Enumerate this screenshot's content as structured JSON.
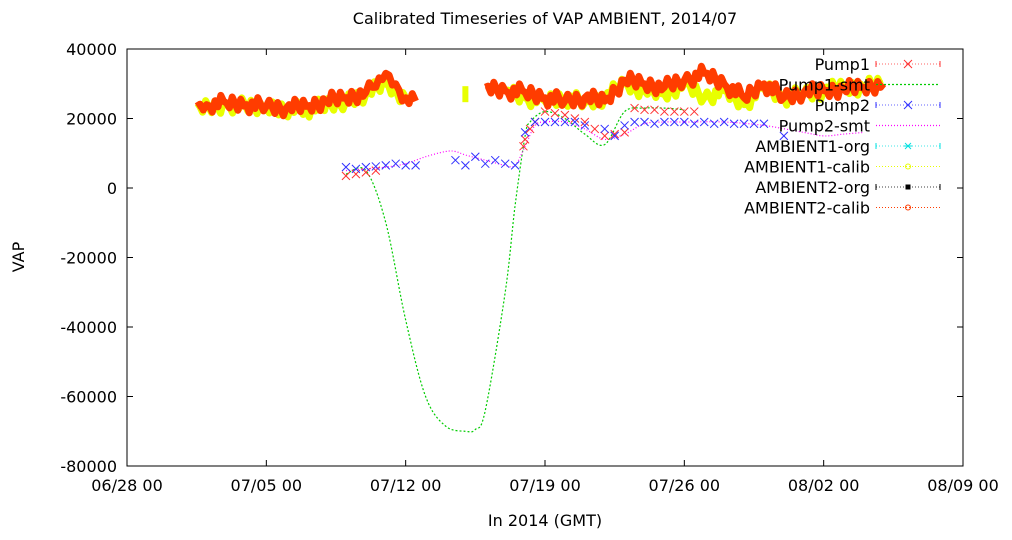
{
  "chart_data": {
    "type": "line",
    "title": "Calibrated Timeseries of VAP AMBIENT, 2014/07",
    "xlabel": "In 2014 (GMT)",
    "ylabel": "VAP",
    "xlim": [
      "2014-06-28T00:00",
      "2014-08-09T00:00"
    ],
    "ylim": [
      -80000,
      40000
    ],
    "x_ticks": [
      "06/28 00",
      "07/05 00",
      "07/12 00",
      "07/19 00",
      "07/26 00",
      "08/02 00",
      "08/09 00"
    ],
    "y_ticks": [
      "40000",
      "20000",
      "0",
      "-20000",
      "-40000",
      "-60000",
      "-80000"
    ],
    "grid": false,
    "legend_position": "top-right",
    "series": [
      {
        "name": "Pump1",
        "style": "points",
        "marker": "x",
        "color": "#ff3030",
        "x": [
          "2014-07-09T00:00",
          "2014-07-09T12:00",
          "2014-07-10T00:00",
          "2014-07-10T12:00",
          "2014-07-17T22:00",
          "2014-07-18T00:00",
          "2014-07-18T06:00",
          "2014-07-18T12:00",
          "2014-07-19T00:00",
          "2014-07-19T12:00",
          "2014-07-20T00:00",
          "2014-07-20T12:00",
          "2014-07-21T00:00",
          "2014-07-21T12:00",
          "2014-07-22T00:00",
          "2014-07-22T12:00",
          "2014-07-23T00:00",
          "2014-07-23T12:00",
          "2014-07-24T00:00",
          "2014-07-24T12:00",
          "2014-07-25T00:00",
          "2014-07-25T12:00",
          "2014-07-26T00:00",
          "2014-07-26T12:00"
        ],
        "values": [
          3500,
          4000,
          4500,
          5000,
          12000,
          14000,
          17000,
          19000,
          22000,
          21500,
          21000,
          20000,
          19000,
          17000,
          15000,
          15500,
          16000,
          23000,
          22500,
          22500,
          22000,
          22000,
          22000,
          22000
        ]
      },
      {
        "name": "Pump1-smt",
        "style": "line",
        "color": "#00cc00",
        "dash": "2,2",
        "x": [
          "2014-07-09T00:00",
          "2014-07-10T00:00",
          "2014-07-11T00:00",
          "2014-07-12T00:00",
          "2014-07-13T00:00",
          "2014-07-14T00:00",
          "2014-07-15T00:00",
          "2014-07-15T12:00",
          "2014-07-16T00:00",
          "2014-07-17T00:00",
          "2014-07-17T12:00",
          "2014-07-18T00:00",
          "2014-07-18T06:00",
          "2014-07-19T00:00",
          "2014-07-20T00:00",
          "2014-07-21T00:00",
          "2014-07-22T00:00",
          "2014-07-23T00:00",
          "2014-07-24T00:00",
          "2014-07-25T00:00",
          "2014-07-26T00:00"
        ],
        "values": [
          4000,
          5000,
          -10000,
          -38000,
          -60000,
          -68500,
          -70000,
          -69500,
          -64000,
          -30000,
          -5000,
          15000,
          19000,
          22000,
          20000,
          15500,
          12500,
          22000,
          23000,
          23000,
          22500
        ]
      },
      {
        "name": "Pump2",
        "style": "points",
        "marker": "x",
        "color": "#3030ff",
        "x": [
          "2014-07-09T00:00",
          "2014-07-09T12:00",
          "2014-07-10T00:00",
          "2014-07-10T12:00",
          "2014-07-11T00:00",
          "2014-07-11T12:00",
          "2014-07-12T00:00",
          "2014-07-12T12:00",
          "2014-07-14T12:00",
          "2014-07-15T00:00",
          "2014-07-15T12:00",
          "2014-07-16T00:00",
          "2014-07-16T12:00",
          "2014-07-17T00:00",
          "2014-07-17T12:00",
          "2014-07-18T00:00",
          "2014-07-18T12:00",
          "2014-07-19T00:00",
          "2014-07-19T12:00",
          "2014-07-20T00:00",
          "2014-07-20T12:00",
          "2014-07-21T00:00",
          "2014-07-22T00:00",
          "2014-07-22T12:00",
          "2014-07-23T00:00",
          "2014-07-23T12:00",
          "2014-07-24T00:00",
          "2014-07-24T12:00",
          "2014-07-25T00:00",
          "2014-07-25T12:00",
          "2014-07-26T00:00",
          "2014-07-26T12:00",
          "2014-07-27T00:00",
          "2014-07-27T12:00",
          "2014-07-28T00:00",
          "2014-07-28T12:00",
          "2014-07-29T00:00",
          "2014-07-29T12:00",
          "2014-07-30T00:00",
          "2014-07-31T00:00"
        ],
        "values": [
          6000,
          5500,
          6000,
          6200,
          6500,
          7000,
          6500,
          6500,
          8000,
          6500,
          9000,
          7000,
          8000,
          7000,
          6500,
          16000,
          19000,
          19000,
          19000,
          19000,
          19000,
          18000,
          17000,
          15000,
          18000,
          19000,
          19000,
          18500,
          19000,
          19000,
          19000,
          18500,
          19000,
          18500,
          19000,
          18500,
          18500,
          18500,
          18500,
          15000
        ]
      },
      {
        "name": "Pump2-smt",
        "style": "line",
        "color": "#ff00ff",
        "dash": "1,2",
        "x": [
          "2014-07-09T00:00",
          "2014-07-10T00:00",
          "2014-07-11T00:00",
          "2014-07-12T00:00",
          "2014-07-13T00:00",
          "2014-07-14T00:00",
          "2014-07-14T12:00",
          "2014-07-15T00:00",
          "2014-07-16T00:00",
          "2014-07-17T00:00",
          "2014-07-17T12:00",
          "2014-07-18T00:00",
          "2014-07-18T12:00",
          "2014-07-19T00:00",
          "2014-07-20T00:00",
          "2014-07-21T00:00",
          "2014-07-22T00:00",
          "2014-07-23T00:00",
          "2014-07-24T00:00",
          "2014-07-25T00:00",
          "2014-07-26T00:00",
          "2014-07-28T00:00",
          "2014-07-30T00:00",
          "2014-08-01T00:00",
          "2014-08-02T00:00",
          "2014-08-03T00:00",
          "2014-08-04T00:00"
        ],
        "values": [
          5000,
          5500,
          6000,
          7000,
          9000,
          10500,
          10500,
          9500,
          8000,
          6500,
          6500,
          12000,
          18000,
          19000,
          19000,
          17000,
          14000,
          15500,
          18500,
          19000,
          19000,
          19000,
          18000,
          16000,
          15000,
          15500,
          16000
        ]
      },
      {
        "name": "AMBIENT1-org",
        "style": "points",
        "marker": "star",
        "color": "#00e0e0",
        "x": [],
        "values": []
      },
      {
        "name": "AMBIENT1-calib",
        "style": "band",
        "color": "#e8ff00",
        "x": [
          "2014-07-01T12:00",
          "2014-07-03T00:00",
          "2014-07-05T00:00",
          "2014-07-07T00:00",
          "2014-07-09T00:00",
          "2014-07-10T00:00",
          "2014-07-11T00:00",
          "2014-07-12T00:00",
          "2014-07-13T00:00",
          "2014-07-14T00:00",
          "2014-07-15T00:00",
          "2014-07-16T00:00",
          "2014-07-17T00:00",
          "2014-07-18T00:00",
          "2014-07-19T00:00",
          "2014-07-20T00:00",
          "2014-07-21T00:00",
          "2014-07-22T00:00",
          "2014-07-23T00:00",
          "2014-07-24T00:00",
          "2014-07-25T00:00",
          "2014-07-26T00:00",
          "2014-07-27T00:00",
          "2014-07-28T00:00",
          "2014-07-29T00:00",
          "2014-07-30T00:00",
          "2014-07-31T00:00",
          "2014-08-01T00:00",
          "2014-08-02T00:00",
          "2014-08-03T00:00",
          "2014-08-04T00:00",
          "2014-08-05T00:00"
        ],
        "values": [
          23000,
          24000,
          23000,
          22500,
          25000,
          27000,
          30000,
          26000,
          null,
          null,
          27000,
          null,
          28000,
          26000,
          25000,
          26000,
          24500,
          26000,
          30000,
          28000,
          27000,
          30000,
          26000,
          28000,
          24000,
          29000,
          26000,
          27000,
          28000,
          29000,
          29000,
          30000
        ]
      },
      {
        "name": "AMBIENT2-org",
        "style": "points",
        "marker": "square",
        "color": "#000000",
        "x": [],
        "values": []
      },
      {
        "name": "AMBIENT2-calib",
        "style": "band",
        "color": "#ff3c00",
        "x": [
          "2014-07-01T12:00",
          "2014-07-02T00:00",
          "2014-07-03T00:00",
          "2014-07-04T00:00",
          "2014-07-05T00:00",
          "2014-07-06T00:00",
          "2014-07-07T00:00",
          "2014-07-08T00:00",
          "2014-07-09T00:00",
          "2014-07-10T00:00",
          "2014-07-10T12:00",
          "2014-07-11T00:00",
          "2014-07-11T12:00",
          "2014-07-12T00:00",
          "2014-07-12T12:00",
          "2014-07-13T00:00",
          "2014-07-16T00:00",
          "2014-07-17T00:00",
          "2014-07-18T00:00",
          "2014-07-19T00:00",
          "2014-07-20T00:00",
          "2014-07-21T00:00",
          "2014-07-22T00:00",
          "2014-07-23T00:00",
          "2014-07-24T00:00",
          "2014-07-25T00:00",
          "2014-07-26T00:00",
          "2014-07-27T00:00",
          "2014-07-28T00:00",
          "2014-07-29T00:00",
          "2014-07-30T00:00",
          "2014-07-31T00:00",
          "2014-08-01T00:00",
          "2014-08-02T00:00",
          "2014-08-03T00:00",
          "2014-08-04T00:00",
          "2014-08-05T00:00"
        ],
        "values": [
          23500,
          24000,
          24500,
          24000,
          23500,
          23000,
          23500,
          25000,
          26000,
          27500,
          29000,
          33000,
          30000,
          26000,
          25000,
          null,
          29000,
          28000,
          27500,
          26000,
          25000,
          26000,
          25000,
          31000,
          30000,
          29000,
          31000,
          33000,
          30000,
          26000,
          30000,
          26000,
          27500,
          28000,
          28500,
          29000,
          30000
        ]
      }
    ]
  }
}
